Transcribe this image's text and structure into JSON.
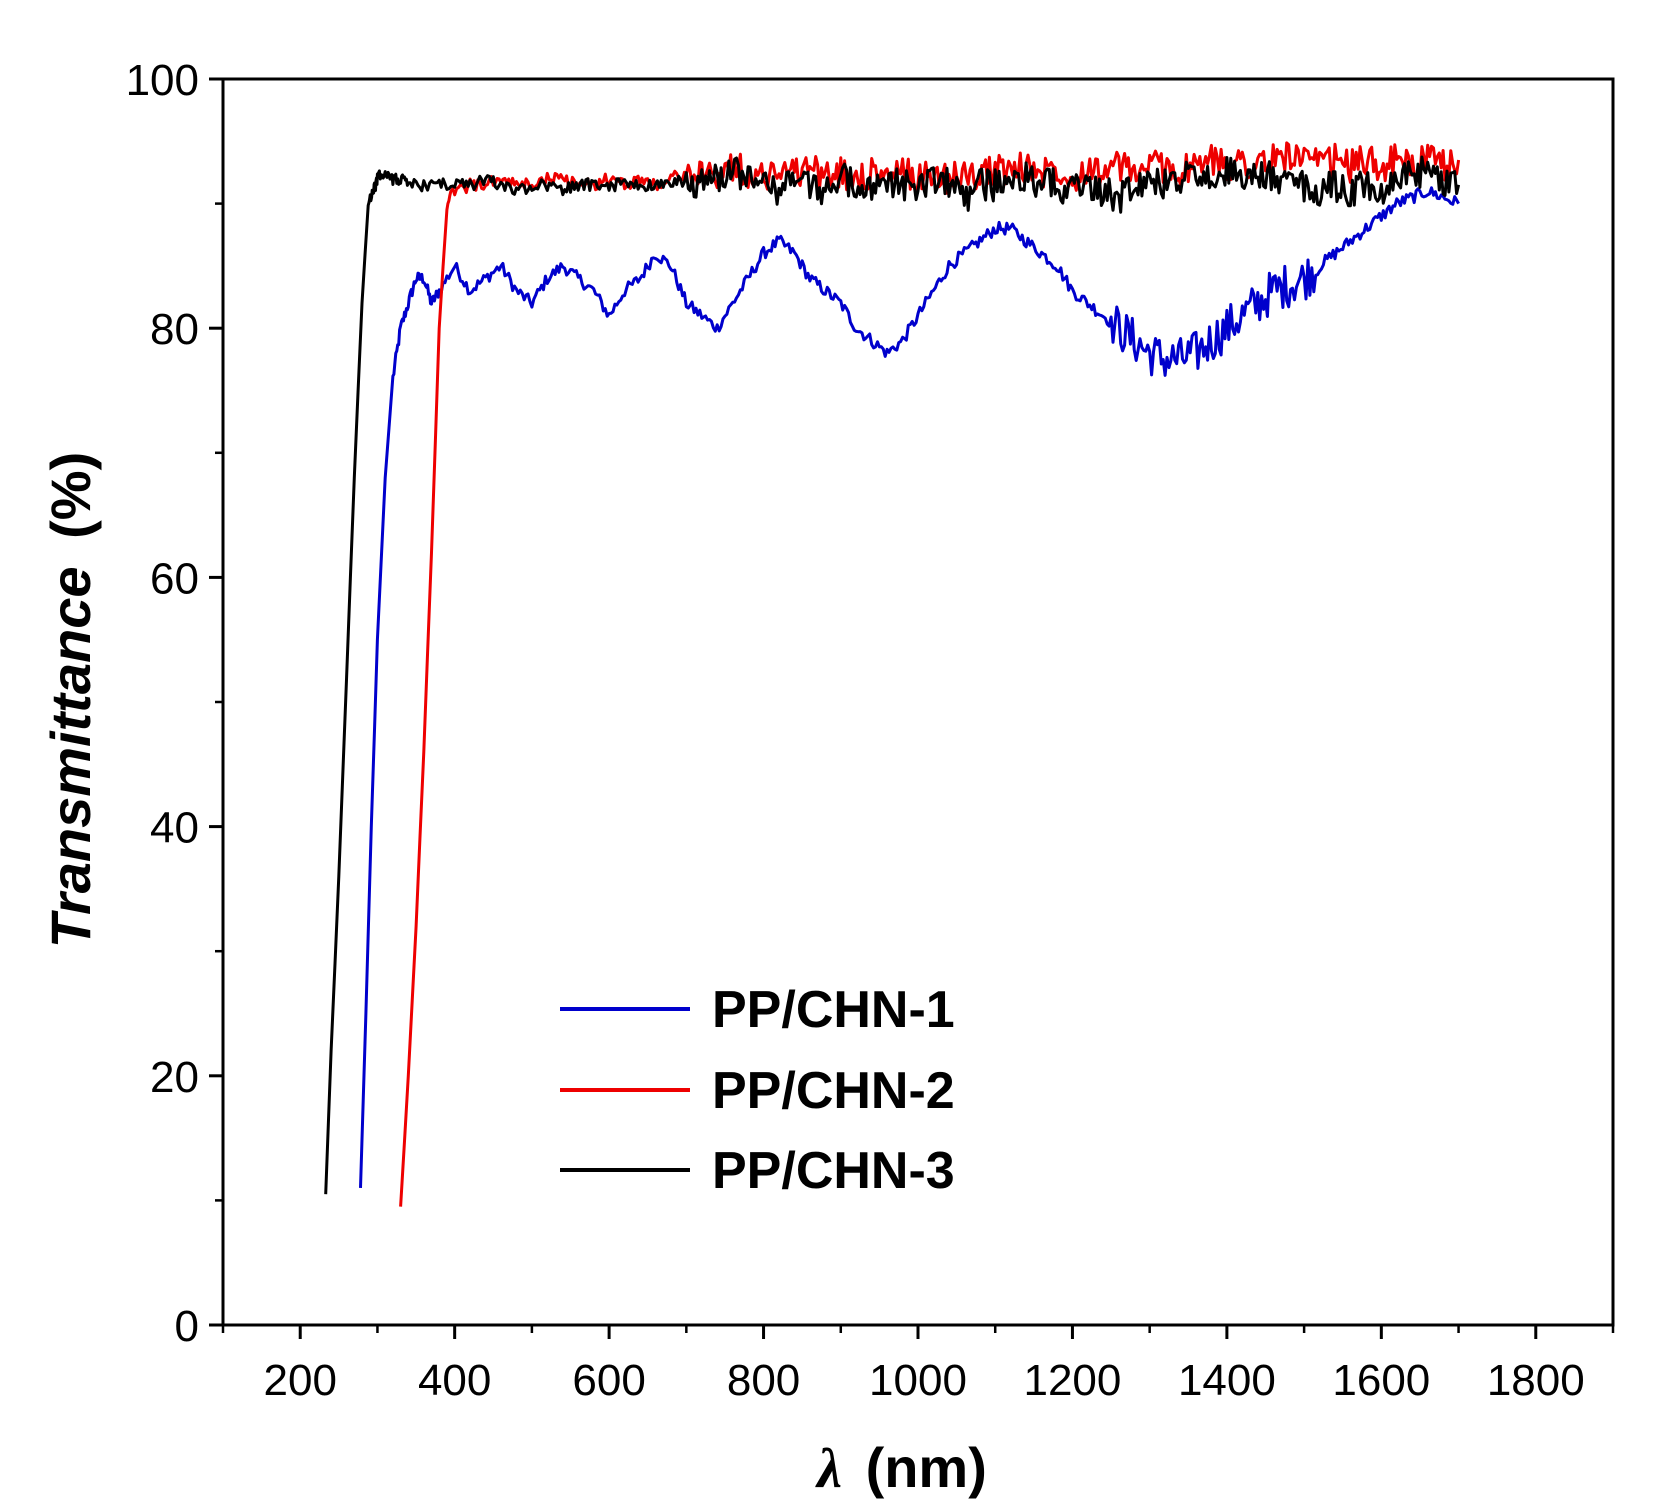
{
  "chart_data": {
    "type": "line",
    "title": "",
    "xlabel_symbol": "λ",
    "xlabel_unit": "(nm)",
    "ylabel": "Transmittance (%)",
    "ylabel_main": "Transmittance",
    "ylabel_unit": "(%)",
    "xlim": [
      100,
      1900
    ],
    "ylim": [
      0,
      100
    ],
    "xticks": [
      200,
      400,
      600,
      800,
      1000,
      1200,
      1400,
      1600,
      1800
    ],
    "xtick_labels": [
      "200",
      "400",
      "600",
      "800",
      "1000",
      "1200",
      "1400",
      "1600",
      "1800"
    ],
    "yticks": [
      0,
      20,
      40,
      60,
      80,
      100
    ],
    "ytick_labels": [
      "0",
      "20",
      "40",
      "60",
      "80",
      "100"
    ],
    "legend_position": "lower-center",
    "series": [
      {
        "name": "PP/CHN-1",
        "color": "#0000cc",
        "x": [
          278,
          285,
          292,
          300,
          310,
          320,
          330,
          340,
          350,
          360,
          370,
          380,
          400,
          420,
          440,
          460,
          480,
          500,
          520,
          540,
          560,
          580,
          600,
          620,
          640,
          660,
          680,
          700,
          720,
          740,
          760,
          780,
          800,
          820,
          840,
          860,
          880,
          900,
          920,
          940,
          960,
          980,
          1000,
          1020,
          1040,
          1060,
          1080,
          1100,
          1120,
          1140,
          1160,
          1180,
          1200,
          1220,
          1240,
          1260,
          1280,
          1300,
          1320,
          1340,
          1360,
          1380,
          1400,
          1420,
          1440,
          1460,
          1480,
          1500,
          1520,
          1540,
          1560,
          1580,
          1600,
          1620,
          1640,
          1660,
          1680,
          1700
        ],
        "y": [
          11,
          25,
          40,
          55,
          68,
          76,
          80,
          82,
          84,
          84,
          82,
          83,
          85,
          83,
          84,
          85,
          83,
          82,
          84,
          85,
          84,
          83,
          81,
          83,
          84,
          86,
          85,
          82,
          81,
          80,
          82,
          84,
          86,
          87,
          86,
          84,
          83,
          82,
          80,
          79,
          78,
          79,
          81,
          83,
          85,
          86,
          87,
          88,
          88,
          87,
          86,
          85,
          83,
          82,
          81,
          80,
          79,
          78,
          77.5,
          77.5,
          78,
          79,
          80,
          81,
          82,
          83,
          83.5,
          84,
          85,
          86,
          87,
          88,
          89,
          90,
          90.5,
          91,
          90.5,
          90
        ]
      },
      {
        "name": "PP/CHN-2",
        "color": "#ee0000",
        "x": [
          330,
          340,
          350,
          360,
          370,
          380,
          390,
          400,
          420,
          440,
          460,
          480,
          500,
          520,
          540,
          560,
          580,
          600,
          620,
          640,
          660,
          680,
          700,
          720,
          740,
          760,
          780,
          800,
          820,
          840,
          860,
          880,
          900,
          920,
          940,
          960,
          980,
          1000,
          1020,
          1040,
          1060,
          1080,
          1100,
          1120,
          1140,
          1160,
          1180,
          1200,
          1220,
          1240,
          1260,
          1280,
          1300,
          1320,
          1340,
          1360,
          1380,
          1400,
          1420,
          1440,
          1460,
          1480,
          1500,
          1520,
          1540,
          1560,
          1580,
          1600,
          1620,
          1640,
          1660,
          1680,
          1700
        ],
        "y": [
          9.5,
          20,
          32,
          46,
          62,
          80,
          90,
          91,
          91.5,
          91.5,
          92,
          91.5,
          91.5,
          92,
          92,
          91.5,
          91.5,
          92,
          91.5,
          92,
          91.5,
          92,
          92.5,
          92,
          92.5,
          93,
          92.5,
          92,
          93,
          92.5,
          93,
          92,
          92.5,
          92,
          92.5,
          92,
          92.5,
          92,
          92.5,
          92,
          92.5,
          92,
          93,
          92.5,
          93,
          92.5,
          93,
          92,
          93,
          92.5,
          93,
          92.5,
          93,
          93,
          92.5,
          93,
          93.5,
          93,
          93.5,
          93,
          93.5,
          94,
          93.5,
          93,
          93.5,
          93,
          93.5,
          93,
          93.5,
          93,
          93.5,
          93,
          93.5
        ]
      },
      {
        "name": "PP/CHN-3",
        "color": "#000000",
        "x": [
          233,
          240,
          250,
          260,
          270,
          280,
          288,
          295,
          300,
          310,
          320,
          330,
          340,
          360,
          380,
          400,
          420,
          440,
          460,
          480,
          500,
          520,
          540,
          560,
          580,
          600,
          620,
          640,
          660,
          680,
          700,
          720,
          740,
          760,
          780,
          800,
          820,
          840,
          860,
          880,
          900,
          920,
          940,
          960,
          980,
          1000,
          1020,
          1040,
          1060,
          1080,
          1100,
          1120,
          1140,
          1160,
          1180,
          1200,
          1220,
          1240,
          1260,
          1280,
          1300,
          1320,
          1340,
          1360,
          1380,
          1400,
          1420,
          1440,
          1460,
          1480,
          1500,
          1520,
          1540,
          1560,
          1580,
          1600,
          1620,
          1640,
          1660,
          1680,
          1700
        ],
        "y": [
          10.5,
          22,
          36,
          52,
          68,
          82,
          90,
          91,
          92,
          92.5,
          92,
          92,
          91.5,
          91.5,
          91.5,
          91.5,
          91.5,
          92,
          91.5,
          91,
          91.5,
          91.5,
          91,
          91.5,
          91.5,
          91.5,
          91.5,
          91.5,
          91.5,
          91.5,
          92,
          91.5,
          92,
          92.5,
          92,
          91.5,
          91,
          92,
          91.5,
          91,
          92,
          91.5,
          91,
          92,
          91.5,
          91,
          92,
          91.5,
          90.5,
          91.5,
          91.5,
          92,
          92,
          91.5,
          91.5,
          91,
          91.5,
          91,
          90.5,
          91,
          92,
          91.5,
          92,
          92.5,
          92,
          92.5,
          92,
          92.5,
          92,
          91.5,
          91.5,
          91,
          91.5,
          91,
          91.5,
          91,
          92,
          92.5,
          92.5,
          92,
          91.5
        ]
      }
    ]
  }
}
